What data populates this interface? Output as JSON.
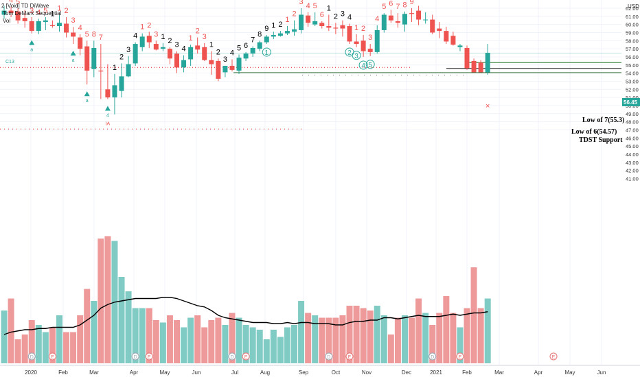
{
  "header": {
    "line1": "2 [Void] TD DiWave",
    "line2": "Tom DeMark Sequential",
    "line3": "Vol"
  },
  "colors": {
    "up": "#26a69a",
    "down": "#ef5350",
    "up_vol": "#80cbc4",
    "down_vol": "#ef9a9a",
    "price_tag": "#26a69a",
    "grid": "#f0f3fa",
    "axis_text": "#333333",
    "count_red": "#ef5350",
    "count_black": "#000000",
    "wave_green": "#26a69a"
  },
  "chart_data": {
    "type": "candlestick",
    "currency": "USD",
    "last_price": "56.45",
    "y_ticks": [
      "62.00",
      "61.00",
      "60.00",
      "59.00",
      "58.00",
      "57.00",
      "56.00",
      "55.00",
      "54.00",
      "53.00",
      "52.00",
      "51.00",
      "50.00",
      "49.00",
      "48.00",
      "47.00",
      "46.00",
      "45.00",
      "44.00",
      "43.00",
      "42.00",
      "41.00"
    ],
    "x_ticks": [
      "2020",
      "Feb",
      "Mar",
      "Apr",
      "May",
      "Jun",
      "Jul",
      "Aug",
      "Sep",
      "Oct",
      "Nov",
      "Dec",
      "2021",
      "Feb",
      "Mar",
      "Apr",
      "May",
      "Jun"
    ],
    "candles": [
      {
        "o": 61.2,
        "h": 62.3,
        "l": 60.7,
        "c": 61.7,
        "v": 42.8
      },
      {
        "o": 61.7,
        "h": 62.2,
        "l": 60.9,
        "c": 61.4,
        "v": 43.3
      },
      {
        "o": 61.6,
        "h": 62.0,
        "l": 60.1,
        "c": 60.5,
        "v": 41.6
      },
      {
        "o": 60.8,
        "h": 61.8,
        "l": 59.6,
        "c": 60.4,
        "v": 41.8
      },
      {
        "o": 60.4,
        "h": 60.9,
        "l": 58.9,
        "c": 59.2,
        "v": 42.4
      },
      {
        "o": 59.2,
        "h": 60.7,
        "l": 58.8,
        "c": 60.4,
        "v": 42.2
      },
      {
        "o": 60.3,
        "h": 60.9,
        "l": 59.3,
        "c": 60.5,
        "v": 41.9
      },
      {
        "o": 59.9,
        "h": 60.5,
        "l": 59.6,
        "c": 59.8,
        "v": 42.1
      },
      {
        "o": 59.8,
        "h": 61.2,
        "l": 59.1,
        "c": 60.2,
        "v": 42.6
      },
      {
        "o": 60.1,
        "h": 60.9,
        "l": 58.4,
        "c": 59.0,
        "v": 41.9
      },
      {
        "o": 59.0,
        "h": 59.7,
        "l": 57.6,
        "c": 58.5,
        "v": 41.9
      },
      {
        "o": 58.4,
        "h": 58.8,
        "l": 56.2,
        "c": 57.0,
        "v": 42.6
      },
      {
        "o": 57.3,
        "h": 58.0,
        "l": 52.6,
        "c": 54.3,
        "v": 43.7
      },
      {
        "o": 54.5,
        "h": 58.0,
        "l": 53.5,
        "c": 57.1,
        "v": 43.2
      },
      {
        "o": 54.3,
        "h": 57.6,
        "l": 50.8,
        "c": 54.2,
        "v": 45.8
      },
      {
        "o": 52.0,
        "h": 55.1,
        "l": 50.8,
        "c": 51.0,
        "v": 45.9
      },
      {
        "o": 51.0,
        "h": 53.9,
        "l": 48.9,
        "c": 52.5,
        "v": 45.7
      },
      {
        "o": 51.8,
        "h": 55.2,
        "l": 51.0,
        "c": 53.6,
        "v": 44.2
      },
      {
        "o": 53.6,
        "h": 56.1,
        "l": 53.5,
        "c": 55.1,
        "v": 43.6
      },
      {
        "o": 55.2,
        "h": 57.8,
        "l": 54.9,
        "c": 57.6,
        "v": 42.9
      },
      {
        "o": 57.2,
        "h": 58.9,
        "l": 56.7,
        "c": 58.5,
        "v": 42.9
      },
      {
        "o": 58.6,
        "h": 59.1,
        "l": 57.1,
        "c": 57.8,
        "v": 42.9
      },
      {
        "o": 57.6,
        "h": 58.0,
        "l": 56.8,
        "c": 56.9,
        "v": 42.4
      },
      {
        "o": 57.0,
        "h": 57.7,
        "l": 56.7,
        "c": 57.2,
        "v": 42.3
      },
      {
        "o": 57.0,
        "h": 57.2,
        "l": 55.1,
        "c": 55.8,
        "v": 42.6
      },
      {
        "o": 56.4,
        "h": 56.7,
        "l": 54.0,
        "c": 54.7,
        "v": 42.4
      },
      {
        "o": 54.7,
        "h": 56.2,
        "l": 54.1,
        "c": 55.6,
        "v": 42.1
      },
      {
        "o": 55.7,
        "h": 57.5,
        "l": 54.9,
        "c": 57.2,
        "v": 42.5
      },
      {
        "o": 57.4,
        "h": 58.4,
        "l": 56.4,
        "c": 56.9,
        "v": 42.6
      },
      {
        "o": 57.2,
        "h": 57.7,
        "l": 55.5,
        "c": 55.6,
        "v": 42.1
      },
      {
        "o": 55.6,
        "h": 56.7,
        "l": 53.8,
        "c": 55.1,
        "v": 42.4
      },
      {
        "o": 55.5,
        "h": 55.8,
        "l": 53.0,
        "c": 53.3,
        "v": 42.5
      },
      {
        "o": 54.1,
        "h": 54.9,
        "l": 53.5,
        "c": 54.9,
        "v": 42.2
      },
      {
        "o": 54.9,
        "h": 55.7,
        "l": 54.2,
        "c": 54.4,
        "v": 42.7
      },
      {
        "o": 54.3,
        "h": 56.3,
        "l": 53.9,
        "c": 55.9,
        "v": 42.5
      },
      {
        "o": 55.8,
        "h": 56.6,
        "l": 55.5,
        "c": 56.4,
        "v": 42.2
      },
      {
        "o": 56.4,
        "h": 57.3,
        "l": 56.0,
        "c": 57.1,
        "v": 42.1
      },
      {
        "o": 57.0,
        "h": 58.0,
        "l": 56.7,
        "c": 57.8,
        "v": 42.0
      },
      {
        "o": 57.8,
        "h": 58.7,
        "l": 57.6,
        "c": 58.5,
        "v": 41.6
      },
      {
        "o": 58.5,
        "h": 59.1,
        "l": 58.2,
        "c": 58.7,
        "v": 42.0
      },
      {
        "o": 58.6,
        "h": 59.2,
        "l": 58.5,
        "c": 58.9,
        "v": 41.7
      },
      {
        "o": 58.9,
        "h": 59.8,
        "l": 58.7,
        "c": 59.2,
        "v": 42.1
      },
      {
        "o": 59.1,
        "h": 60.5,
        "l": 58.6,
        "c": 59.4,
        "v": 42.2
      },
      {
        "o": 59.3,
        "h": 62.0,
        "l": 58.9,
        "c": 61.2,
        "v": 43.2
      },
      {
        "o": 61.1,
        "h": 61.5,
        "l": 59.7,
        "c": 60.2,
        "v": 42.7
      },
      {
        "o": 60.0,
        "h": 61.5,
        "l": 59.8,
        "c": 60.4,
        "v": 42.6
      },
      {
        "o": 60.2,
        "h": 60.4,
        "l": 59.5,
        "c": 59.8,
        "v": 42.5
      },
      {
        "o": 59.8,
        "h": 61.2,
        "l": 59.2,
        "c": 59.6,
        "v": 42.5
      },
      {
        "o": 59.6,
        "h": 60.2,
        "l": 58.8,
        "c": 59.5,
        "v": 42.5
      },
      {
        "o": 59.9,
        "h": 60.5,
        "l": 58.5,
        "c": 59.5,
        "v": 42.6
      },
      {
        "o": 59.8,
        "h": 60.1,
        "l": 57.6,
        "c": 57.9,
        "v": 43.0
      },
      {
        "o": 57.9,
        "h": 58.8,
        "l": 57.2,
        "c": 57.6,
        "v": 43.0
      },
      {
        "o": 58.0,
        "h": 58.7,
        "l": 56.0,
        "c": 56.7,
        "v": 42.9
      },
      {
        "o": 57.0,
        "h": 57.6,
        "l": 56.1,
        "c": 56.6,
        "v": 42.8
      },
      {
        "o": 56.6,
        "h": 59.9,
        "l": 56.4,
        "c": 59.3,
        "v": 43.0
      },
      {
        "o": 59.3,
        "h": 61.4,
        "l": 59.0,
        "c": 61.2,
        "v": 42.6
      },
      {
        "o": 61.1,
        "h": 61.8,
        "l": 60.2,
        "c": 60.5,
        "v": 41.8
      },
      {
        "o": 60.4,
        "h": 61.4,
        "l": 59.6,
        "c": 60.2,
        "v": 42.5
      },
      {
        "o": 60.0,
        "h": 61.6,
        "l": 59.1,
        "c": 61.3,
        "v": 42.6
      },
      {
        "o": 61.4,
        "h": 62.0,
        "l": 60.3,
        "c": 61.3,
        "v": 42.5
      },
      {
        "o": 61.7,
        "h": 62.3,
        "l": 59.9,
        "c": 60.6,
        "v": 43.3
      },
      {
        "o": 60.6,
        "h": 61.5,
        "l": 60.1,
        "c": 60.6,
        "v": 42.7
      },
      {
        "o": 60.6,
        "h": 61.2,
        "l": 58.8,
        "c": 59.0,
        "v": 42.2
      },
      {
        "o": 59.5,
        "h": 60.3,
        "l": 58.3,
        "c": 59.2,
        "v": 42.7
      },
      {
        "o": 59.2,
        "h": 59.7,
        "l": 57.6,
        "c": 57.9,
        "v": 43.4
      },
      {
        "o": 58.6,
        "h": 59.1,
        "l": 57.4,
        "c": 57.5,
        "v": 42.7
      },
      {
        "o": 57.2,
        "h": 57.6,
        "l": 56.7,
        "c": 57.4,
        "v": 42.1
      },
      {
        "o": 57.1,
        "h": 57.4,
        "l": 54.4,
        "c": 54.6,
        "v": 42.9
      },
      {
        "o": 55.5,
        "h": 55.8,
        "l": 54.2,
        "c": 54.1,
        "v": 44.6
      },
      {
        "o": 55.3,
        "h": 55.6,
        "l": 54.1,
        "c": 54.1,
        "v": 42.9
      },
      {
        "o": 54.1,
        "h": 57.6,
        "l": 53.8,
        "c": 56.5,
        "v": 43.3
      }
    ],
    "counts": [
      {
        "i": 1,
        "t": "4",
        "c": "red",
        "pos": "above"
      },
      {
        "i": 2,
        "t": "5",
        "c": "red",
        "pos": "above"
      },
      {
        "i": 4,
        "t": "3",
        "c": "red",
        "pos": "above"
      },
      {
        "i": 5,
        "t": "4",
        "c": "red",
        "pos": "above"
      },
      {
        "i": 6,
        "t": "5",
        "c": "red",
        "pos": "above"
      },
      {
        "i": 7,
        "t": "1",
        "c": "black",
        "pos": "above"
      },
      {
        "i": 8,
        "t": "1",
        "c": "red",
        "pos": "above"
      },
      {
        "i": 9,
        "t": "2",
        "c": "red",
        "pos": "above"
      },
      {
        "i": 10,
        "t": "3",
        "c": "red",
        "pos": "above"
      },
      {
        "i": 11,
        "t": "4",
        "c": "red",
        "pos": "above"
      },
      {
        "i": 12,
        "t": "5",
        "c": "red",
        "pos": "above"
      },
      {
        "i": 13,
        "t": "8",
        "c": "red",
        "pos": "above"
      },
      {
        "i": 14,
        "t": "7",
        "c": "red",
        "pos": "above"
      },
      {
        "i": 16,
        "t": "1",
        "c": "black",
        "pos": "above"
      },
      {
        "i": 17,
        "t": "2",
        "c": "black",
        "pos": "above"
      },
      {
        "i": 18,
        "t": "3",
        "c": "black",
        "pos": "above"
      },
      {
        "i": 19,
        "t": "4",
        "c": "black",
        "pos": "above"
      },
      {
        "i": 20,
        "t": "1",
        "c": "red",
        "pos": "above"
      },
      {
        "i": 21,
        "t": "2",
        "c": "red",
        "pos": "above"
      },
      {
        "i": 22,
        "t": "3",
        "c": "red",
        "pos": "above"
      },
      {
        "i": 23,
        "t": "1",
        "c": "black",
        "pos": "above"
      },
      {
        "i": 24,
        "t": "2",
        "c": "black",
        "pos": "above"
      },
      {
        "i": 25,
        "t": "3",
        "c": "black",
        "pos": "above"
      },
      {
        "i": 26,
        "t": "4",
        "c": "black",
        "pos": "above"
      },
      {
        "i": 27,
        "t": "1",
        "c": "red",
        "pos": "above"
      },
      {
        "i": 28,
        "t": "2",
        "c": "red",
        "pos": "above"
      },
      {
        "i": 29,
        "t": "3",
        "c": "red",
        "pos": "above"
      },
      {
        "i": 30,
        "t": "1",
        "c": "black",
        "pos": "above"
      },
      {
        "i": 31,
        "t": "2",
        "c": "black",
        "pos": "above"
      },
      {
        "i": 32,
        "t": "3",
        "c": "black",
        "pos": "above"
      },
      {
        "i": 33,
        "t": "4",
        "c": "black",
        "pos": "above"
      },
      {
        "i": 34,
        "t": "5",
        "c": "black",
        "pos": "above"
      },
      {
        "i": 35,
        "t": "6",
        "c": "black",
        "pos": "above"
      },
      {
        "i": 36,
        "t": "7",
        "c": "black",
        "pos": "above"
      },
      {
        "i": 37,
        "t": "8",
        "c": "black",
        "pos": "above"
      },
      {
        "i": 38,
        "t": "9",
        "c": "black",
        "pos": "above"
      },
      {
        "i": 39,
        "t": "1",
        "c": "black",
        "pos": "above"
      },
      {
        "i": 40,
        "t": "2",
        "c": "black",
        "pos": "above"
      },
      {
        "i": 41,
        "t": "1",
        "c": "red",
        "pos": "above"
      },
      {
        "i": 42,
        "t": "2",
        "c": "red",
        "pos": "above"
      },
      {
        "i": 43,
        "t": "3",
        "c": "red",
        "pos": "above"
      },
      {
        "i": 44,
        "t": "4",
        "c": "red",
        "pos": "above"
      },
      {
        "i": 45,
        "t": "5",
        "c": "red",
        "pos": "above"
      },
      {
        "i": 46,
        "t": "6",
        "c": "red",
        "pos": "above"
      },
      {
        "i": 47,
        "t": "1",
        "c": "black",
        "pos": "above"
      },
      {
        "i": 48,
        "t": "2",
        "c": "black",
        "pos": "above"
      },
      {
        "i": 49,
        "t": "3",
        "c": "black",
        "pos": "above"
      },
      {
        "i": 50,
        "t": "4",
        "c": "black",
        "pos": "above"
      },
      {
        "i": 51,
        "t": "1",
        "c": "red",
        "pos": "above"
      },
      {
        "i": 52,
        "t": "2",
        "c": "red",
        "pos": "above"
      },
      {
        "i": 53,
        "t": "3",
        "c": "red",
        "pos": "above"
      },
      {
        "i": 54,
        "t": "4",
        "c": "red",
        "pos": "above"
      },
      {
        "i": 55,
        "t": "5",
        "c": "red",
        "pos": "above"
      },
      {
        "i": 56,
        "t": "6",
        "c": "red",
        "pos": "above"
      },
      {
        "i": 57,
        "t": "7",
        "c": "red",
        "pos": "above"
      },
      {
        "i": 58,
        "t": "8",
        "c": "red",
        "pos": "above"
      },
      {
        "i": 59,
        "t": "9",
        "c": "red",
        "pos": "above"
      }
    ],
    "wave_labels": [
      {
        "i": 38,
        "t": "1"
      },
      {
        "i": 50,
        "t": "2"
      },
      {
        "i": 51,
        "t": "3"
      },
      {
        "i": 52,
        "t": "4"
      },
      {
        "i": 53,
        "t": "5"
      }
    ],
    "annotations": {
      "c13": "C13",
      "ia": "IA",
      "a": "a",
      "four": "4",
      "low7": "Low of 7(55.3)",
      "low6": "Low of 6(54.57)",
      "tdst": "TDST Support",
      "event_d": "D",
      "event_e": "E"
    },
    "levels": {
      "low7": 55.3,
      "low6": 54.57,
      "tdst": 54.05,
      "dotted_mid": 54.7,
      "dotted_top": 56.45
    },
    "vol_ma": [
      41.8,
      41.9,
      41.95,
      42.0,
      42.0,
      42.05,
      42.05,
      42.1,
      42.1,
      42.1,
      42.1,
      42.2,
      42.4,
      42.6,
      42.9,
      43.05,
      43.15,
      43.2,
      43.25,
      43.3,
      43.3,
      43.3,
      43.3,
      43.35,
      43.35,
      43.3,
      43.2,
      43.1,
      43.0,
      42.95,
      42.8,
      42.6,
      42.5,
      42.45,
      42.4,
      42.35,
      42.3,
      42.3,
      42.3,
      42.25,
      42.25,
      42.3,
      42.25,
      42.3,
      42.3,
      42.25,
      42.25,
      42.25,
      42.2,
      42.2,
      42.3,
      42.35,
      42.35,
      42.4,
      42.4,
      42.5,
      42.5,
      42.45,
      42.5,
      42.55,
      42.6,
      42.55,
      42.55,
      42.55,
      42.6,
      42.65,
      42.6,
      42.65,
      42.7,
      42.7,
      42.75
    ]
  }
}
